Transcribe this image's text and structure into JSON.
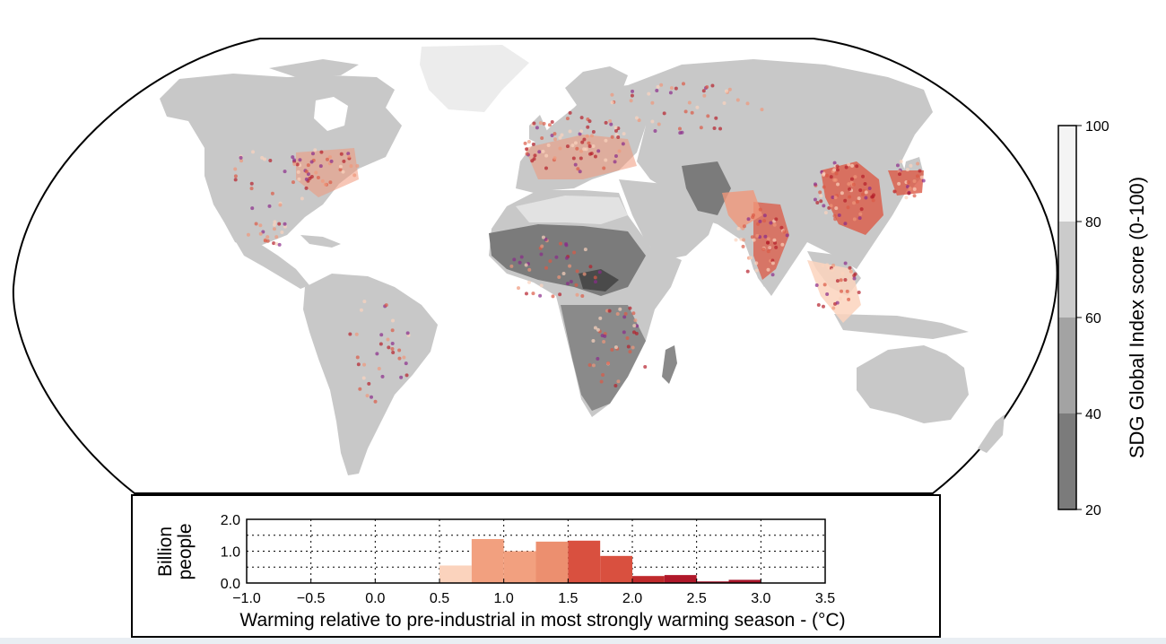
{
  "colorbar": {
    "label": "SDG Global Index score (0-100)",
    "ticks": [
      "100",
      "80",
      "60",
      "40",
      "20"
    ],
    "bands": [
      "#f4f4f4",
      "#cbcbcb",
      "#a3a3a3",
      "#7b7b7b",
      "#525252"
    ]
  },
  "map": {
    "land_color": "#c8c8c8",
    "border_color": "#ffffff",
    "hotspot_colors": [
      "#fbd3bd",
      "#f0977a",
      "#dc5a46",
      "#b51f2b",
      "#8a2b8a"
    ]
  },
  "chart_data": {
    "type": "bar",
    "xlabel": "Warming relative to pre-industrial in most strongly warming season - (°C)",
    "ylabel": "Billion people",
    "xlim": [
      -1.0,
      3.5
    ],
    "ylim": [
      0.0,
      2.0
    ],
    "xticks": [
      "−1.0",
      "−0.5",
      "0.0",
      "0.5",
      "1.0",
      "1.5",
      "2.0",
      "2.5",
      "3.0",
      "3.5"
    ],
    "yticks": [
      "2.0",
      "1.0",
      "0.0"
    ],
    "bin_width": 0.25,
    "bins": [
      {
        "x": 0.5,
        "value": 0.55,
        "color": "#fbd3bd"
      },
      {
        "x": 0.75,
        "value": 1.38,
        "color": "#f2a07f"
      },
      {
        "x": 1.0,
        "value": 1.0,
        "color": "#f2a07f"
      },
      {
        "x": 1.25,
        "value": 1.3,
        "color": "#ec8f6f"
      },
      {
        "x": 1.5,
        "value": 1.33,
        "color": "#d9503f"
      },
      {
        "x": 1.75,
        "value": 0.85,
        "color": "#d9503f"
      },
      {
        "x": 2.0,
        "value": 0.22,
        "color": "#c02a2c"
      },
      {
        "x": 2.25,
        "value": 0.25,
        "color": "#b0182a"
      },
      {
        "x": 2.5,
        "value": 0.05,
        "color": "#a7152a"
      },
      {
        "x": 2.75,
        "value": 0.1,
        "color": "#a7152a"
      }
    ],
    "grid": "dotted"
  }
}
